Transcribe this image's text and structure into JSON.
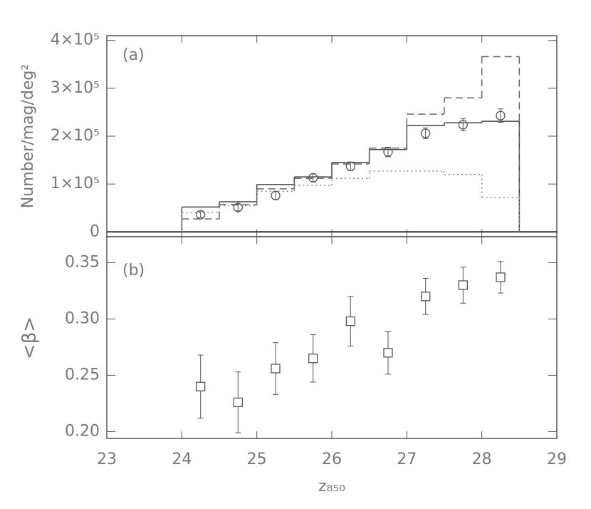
{
  "chart_data": [
    {
      "type": "histogram",
      "annotation": "(a)",
      "y_label": "Number/mag/deg²",
      "xlim": [
        23,
        29
      ],
      "xticks": [
        23,
        24,
        25,
        26,
        27,
        28,
        29
      ],
      "ylim": [
        -10000,
        410000
      ],
      "yticks": [
        0,
        {
          "value": 100000,
          "label": "1×10⁵"
        },
        {
          "value": 200000,
          "label": "2×10⁵"
        },
        {
          "value": 300000,
          "label": "3×10⁵"
        },
        {
          "value": 400000,
          "label": "4×10⁵"
        }
      ],
      "bins": [
        24,
        24.5,
        25,
        25.5,
        26,
        26.5,
        27,
        27.5,
        28,
        28.5
      ],
      "series": [
        {
          "color": "#444444",
          "dash": "solid",
          "values": [
            52000,
            63000,
            99000,
            115000,
            145000,
            172000,
            222000,
            228000,
            231000
          ]
        },
        {
          "color": "#666666",
          "dash": "dashed",
          "values": [
            27000,
            57000,
            90000,
            112000,
            142000,
            175000,
            246000,
            280000,
            366000
          ]
        },
        {
          "color": "#888888",
          "dash": "dotted",
          "values": [
            40000,
            55000,
            85000,
            97000,
            112000,
            127000,
            127000,
            120000,
            72000
          ]
        }
      ],
      "points": {
        "color": "#555555",
        "marker": "circle",
        "x": [
          24.25,
          24.75,
          25.25,
          25.75,
          26.25,
          26.75,
          27.25,
          27.75,
          28.25
        ],
        "values": [
          36000,
          51000,
          76000,
          113000,
          137000,
          167000,
          206000,
          224000,
          243000
        ],
        "errors": [
          6000,
          7000,
          8000,
          8000,
          9000,
          10000,
          11000,
          13000,
          14000
        ]
      }
    },
    {
      "type": "scatter",
      "annotation": "(b)",
      "y_label": "<β>",
      "x_label": "z₈₅₀",
      "xlim": [
        23,
        29
      ],
      "xticks": [
        23,
        24,
        25,
        26,
        27,
        28,
        29
      ],
      "ylim": [
        0.194,
        0.373
      ],
      "yticks": [
        {
          "value": 0.2,
          "label": "0.20"
        },
        0.25,
        {
          "value": 0.3,
          "label": "0.30"
        },
        0.35
      ],
      "color": "#555555",
      "marker": "square",
      "x": [
        24.25,
        24.75,
        25.25,
        25.75,
        26.25,
        26.75,
        27.25,
        27.75,
        28.25
      ],
      "values": [
        0.24,
        0.226,
        0.256,
        0.265,
        0.298,
        0.27,
        0.32,
        0.33,
        0.337
      ],
      "errors": [
        0.028,
        0.027,
        0.023,
        0.021,
        0.022,
        0.019,
        0.016,
        0.016,
        0.014
      ]
    }
  ]
}
